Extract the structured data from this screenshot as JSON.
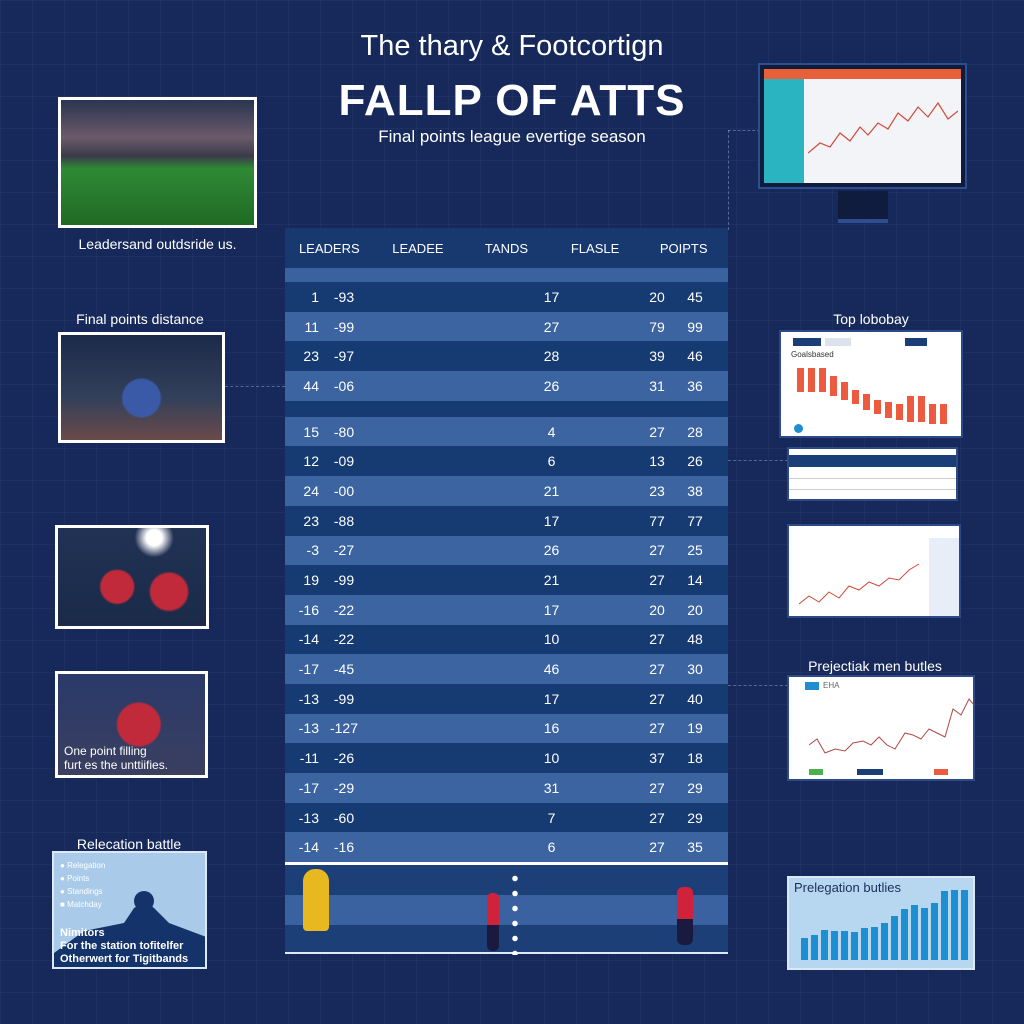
{
  "header": {
    "title": "The thary & Footcortign",
    "headline": "FALLP OF ATTS",
    "subtitle": "Final points league evertige season"
  },
  "left": {
    "caption1": "Leadersand outdsride us.",
    "caption2": "Final points distance",
    "photo4_caption": [
      "One point filling",
      "furt es the unttiifies."
    ],
    "caption5": "Relecation battle",
    "relegation_panel": {
      "items": [
        "Relegation",
        "Points",
        "Standings",
        "Matchday"
      ],
      "text": [
        "Nimitors",
        "For the station tofitelfer",
        "Otherwert for Tigitbands"
      ]
    }
  },
  "table": {
    "columns": [
      "LEADERS",
      "LEADEE",
      "TANDS",
      "FLASLE",
      "POIPTS"
    ],
    "rows": [
      [
        "1",
        "-93",
        "17",
        "20",
        "45"
      ],
      [
        "11",
        "-99",
        "27",
        "79",
        "99"
      ],
      [
        "23",
        "-97",
        "28",
        "39",
        "46"
      ],
      [
        "44",
        "-06",
        "26",
        "31",
        "36"
      ],
      [
        "15",
        "-80",
        "4",
        "27",
        "28"
      ],
      [
        "12",
        "-09",
        "6",
        "13",
        "26"
      ],
      [
        "24",
        "-00",
        "21",
        "23",
        "38"
      ],
      [
        "23",
        "-88",
        "17",
        "77",
        "77"
      ],
      [
        "-3",
        "-27",
        "26",
        "27",
        "25"
      ],
      [
        "19",
        "-99",
        "21",
        "27",
        "14"
      ],
      [
        "-16",
        "-22",
        "17",
        "20",
        "20"
      ],
      [
        "-14",
        "-22",
        "10",
        "27",
        "48"
      ],
      [
        "-17",
        "-45",
        "46",
        "27",
        "30"
      ],
      [
        "-13",
        "-99",
        "17",
        "27",
        "40"
      ],
      [
        "-13",
        "-127",
        "16",
        "27",
        "19"
      ],
      [
        "-11",
        "-26",
        "10",
        "37",
        "18"
      ],
      [
        "-17",
        "-29",
        "31",
        "27",
        "29"
      ],
      [
        "-13",
        "-60",
        "7",
        "27",
        "29"
      ],
      [
        "-14",
        "-16",
        "6",
        "27",
        "35"
      ]
    ]
  },
  "right": {
    "label_top": "Top lobobay",
    "top_panel_title": "Goalsbased",
    "label_proj": "Prejectiak men butles",
    "proj_badge": "EHA",
    "label_releg": "Prelegation butlies",
    "colors": {
      "accent_red": "#ec5b3f",
      "accent_blue": "#1d8fd0"
    }
  }
}
